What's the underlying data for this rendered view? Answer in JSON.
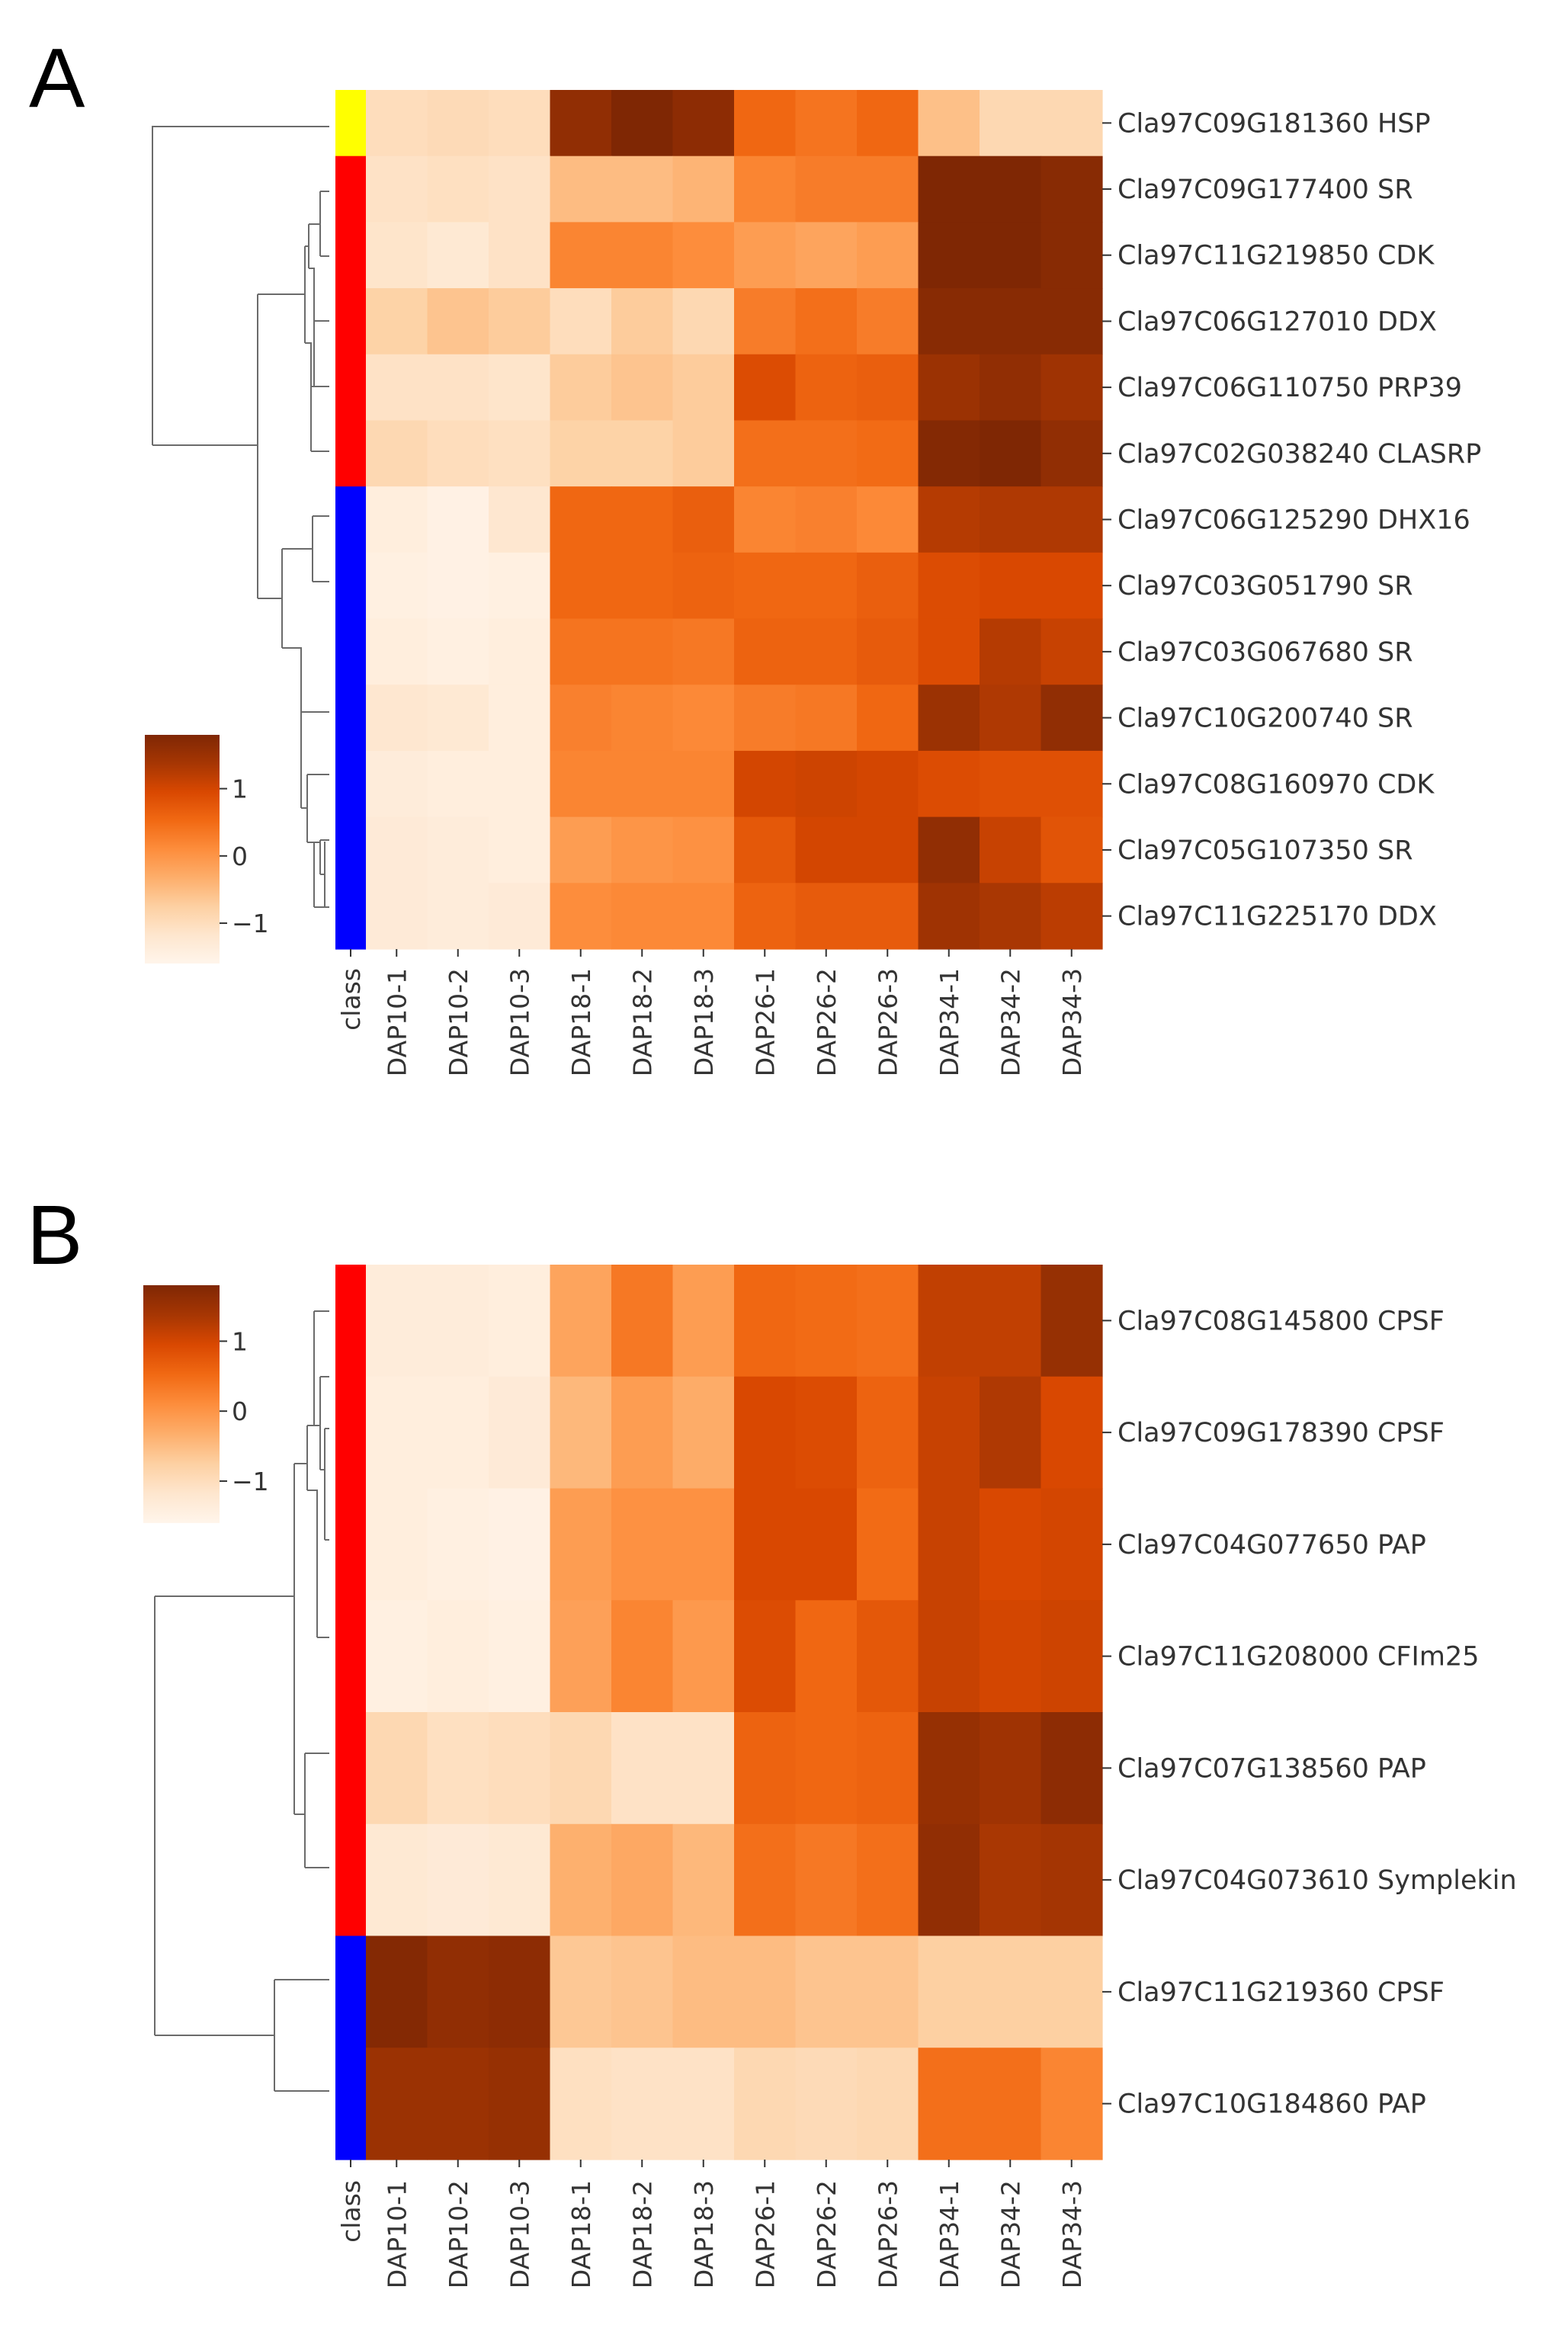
{
  "colors": {
    "scale": [
      "#fff5eb",
      "#fee6ce",
      "#fdd0a2",
      "#fdae6b",
      "#fd8d3c",
      "#f16913",
      "#d94801",
      "#a63603",
      "#7f2704"
    ],
    "class_palette": {
      "yellow": "#ffff00",
      "red": "#ff0000",
      "blue": "#0000ff"
    }
  },
  "chart_data": [
    {
      "type": "heatmap",
      "panel": "A",
      "columns": [
        "DAP10-1",
        "DAP10-2",
        "DAP10-3",
        "DAP18-1",
        "DAP18-2",
        "DAP18-3",
        "DAP26-1",
        "DAP26-2",
        "DAP26-3",
        "DAP34-1",
        "DAP34-2",
        "DAP34-3"
      ],
      "class_label": "class",
      "rows": [
        "Cla97C09G181360 HSP",
        "Cla97C09G177400 SR",
        "Cla97C11G219850 CDK",
        "Cla97C06G127010 DDX",
        "Cla97C06G110750 PRP39",
        "Cla97C02G038240 CLASRP",
        "Cla97C06G125290 DHX16",
        "Cla97C03G051790 SR",
        "Cla97C03G067680 SR",
        "Cla97C10G200740 SR",
        "Cla97C08G160970 CDK",
        "Cla97C05G107350 SR",
        "Cla97C11G225170 DDX"
      ],
      "row_classes": [
        "yellow",
        "red",
        "red",
        "red",
        "red",
        "red",
        "blue",
        "blue",
        "blue",
        "blue",
        "blue",
        "blue",
        "blue"
      ],
      "values": [
        [
          -1.0,
          -0.95,
          -1.0,
          1.6,
          1.8,
          1.65,
          0.55,
          0.4,
          0.55,
          -0.55,
          -0.9,
          -0.9
        ],
        [
          -1.1,
          -1.05,
          -1.1,
          -0.5,
          -0.5,
          -0.4,
          0.2,
          0.3,
          0.3,
          1.8,
          1.8,
          1.7
        ],
        [
          -1.15,
          -1.25,
          -1.1,
          0.2,
          0.2,
          0.1,
          -0.1,
          -0.2,
          -0.1,
          1.8,
          1.8,
          1.7
        ],
        [
          -0.8,
          -0.6,
          -0.7,
          -1.0,
          -0.7,
          -0.9,
          0.3,
          0.45,
          0.3,
          1.7,
          1.7,
          1.7
        ],
        [
          -1.1,
          -1.1,
          -1.15,
          -0.7,
          -0.6,
          -0.7,
          0.9,
          0.6,
          0.65,
          1.5,
          1.6,
          1.45
        ],
        [
          -0.9,
          -1.0,
          -1.05,
          -0.8,
          -0.8,
          -0.7,
          0.45,
          0.45,
          0.5,
          1.75,
          1.85,
          1.6
        ],
        [
          -1.4,
          -1.5,
          -1.2,
          0.55,
          0.55,
          0.65,
          0.2,
          0.25,
          0.15,
          1.25,
          1.3,
          1.3
        ],
        [
          -1.45,
          -1.5,
          -1.45,
          0.55,
          0.55,
          0.6,
          0.55,
          0.55,
          0.65,
          0.9,
          0.95,
          0.95
        ],
        [
          -1.4,
          -1.45,
          -1.4,
          0.4,
          0.4,
          0.35,
          0.6,
          0.6,
          0.7,
          0.9,
          1.25,
          1.1
        ],
        [
          -1.2,
          -1.25,
          -1.4,
          0.25,
          0.2,
          0.15,
          0.3,
          0.35,
          0.55,
          1.5,
          1.3,
          1.6
        ],
        [
          -1.35,
          -1.4,
          -1.4,
          0.2,
          0.2,
          0.2,
          1.0,
          1.05,
          1.0,
          0.9,
          0.85,
          0.85
        ],
        [
          -1.3,
          -1.35,
          -1.4,
          -0.1,
          0.0,
          0.05,
          0.75,
          1.0,
          1.0,
          1.6,
          1.1,
          0.8
        ],
        [
          -1.3,
          -1.35,
          -1.3,
          0.1,
          0.15,
          0.15,
          0.6,
          0.7,
          0.7,
          1.45,
          1.35,
          1.2
        ]
      ],
      "colorbar": {
        "ticks": [
          1,
          0,
          -1
        ],
        "tick_labels": [
          "1",
          "0",
          "−1"
        ],
        "range": [
          -1.6,
          1.8
        ]
      }
    },
    {
      "type": "heatmap",
      "panel": "B",
      "columns": [
        "DAP10-1",
        "DAP10-2",
        "DAP10-3",
        "DAP18-1",
        "DAP18-2",
        "DAP18-3",
        "DAP26-1",
        "DAP26-2",
        "DAP26-3",
        "DAP34-1",
        "DAP34-2",
        "DAP34-3"
      ],
      "class_label": "class",
      "rows": [
        "Cla97C08G145800 CPSF",
        "Cla97C09G178390 CPSF",
        "Cla97C04G077650 PAP",
        "Cla97C11G208000 CFIm25",
        "Cla97C07G138560 PAP",
        "Cla97C04G073610 Symplekin",
        "Cla97C11G219360 CPSF",
        "Cla97C10G184860 PAP"
      ],
      "row_classes": [
        "red",
        "red",
        "red",
        "red",
        "red",
        "red",
        "blue",
        "blue"
      ],
      "values": [
        [
          -1.35,
          -1.35,
          -1.4,
          -0.2,
          0.35,
          -0.1,
          0.55,
          0.5,
          0.45,
          1.15,
          1.15,
          1.55
        ],
        [
          -1.4,
          -1.4,
          -1.3,
          -0.45,
          -0.1,
          -0.3,
          0.95,
          0.9,
          0.6,
          1.1,
          1.3,
          0.95
        ],
        [
          -1.4,
          -1.45,
          -1.5,
          -0.1,
          0.05,
          0.05,
          0.95,
          0.95,
          0.5,
          1.1,
          0.95,
          1.0
        ],
        [
          -1.45,
          -1.4,
          -1.45,
          -0.15,
          0.2,
          -0.05,
          0.9,
          0.55,
          0.75,
          1.1,
          1.0,
          1.05
        ],
        [
          -0.9,
          -1.05,
          -1.0,
          -0.9,
          -1.1,
          -1.1,
          0.6,
          0.55,
          0.6,
          1.55,
          1.45,
          1.65
        ],
        [
          -1.25,
          -1.3,
          -1.25,
          -0.35,
          -0.25,
          -0.45,
          0.45,
          0.35,
          0.45,
          1.6,
          1.35,
          1.4
        ],
        [
          1.75,
          1.6,
          1.65,
          -0.65,
          -0.6,
          -0.5,
          -0.5,
          -0.6,
          -0.6,
          -0.75,
          -0.75,
          -0.75
        ],
        [
          1.5,
          1.5,
          1.55,
          -1.05,
          -1.1,
          -1.1,
          -0.9,
          -0.95,
          -0.9,
          0.45,
          0.45,
          0.2
        ]
      ],
      "colorbar": {
        "ticks": [
          1,
          0,
          -1
        ],
        "tick_labels": [
          "1",
          "0",
          "−1"
        ],
        "range": [
          -1.6,
          1.8
        ]
      }
    }
  ]
}
